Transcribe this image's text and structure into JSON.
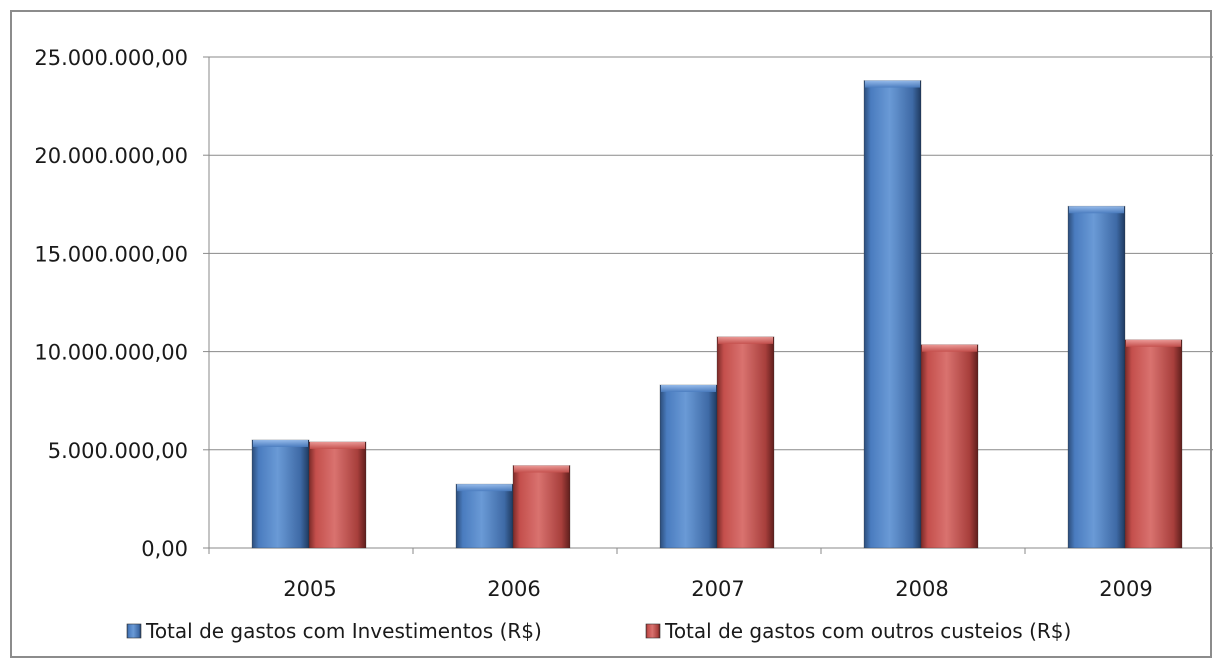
{
  "chart_data": {
    "type": "bar",
    "title": "",
    "xlabel": "",
    "ylabel": "",
    "categories": [
      "2005",
      "2006",
      "2007",
      "2008",
      "2009"
    ],
    "series": [
      {
        "name": "Total de gastos com Investimentos (R$)",
        "color": "#4f81bd",
        "values": [
          5500000,
          3250000,
          8300000,
          23800000,
          17400000
        ]
      },
      {
        "name": "Total de gastos com outros custeios (R$)",
        "color": "#c0504d",
        "values": [
          5400000,
          4200000,
          10750000,
          10350000,
          10600000
        ]
      }
    ],
    "ylim": [
      0,
      25000000
    ],
    "yticks": [
      0,
      5000000,
      10000000,
      15000000,
      20000000,
      25000000
    ],
    "ytick_labels": [
      "0,00",
      "5.000.000,00",
      "10.000.000,00",
      "15.000.000,00",
      "20.000.000,00",
      "25.000.000,00"
    ],
    "grid": true,
    "legend_position": "bottom"
  }
}
